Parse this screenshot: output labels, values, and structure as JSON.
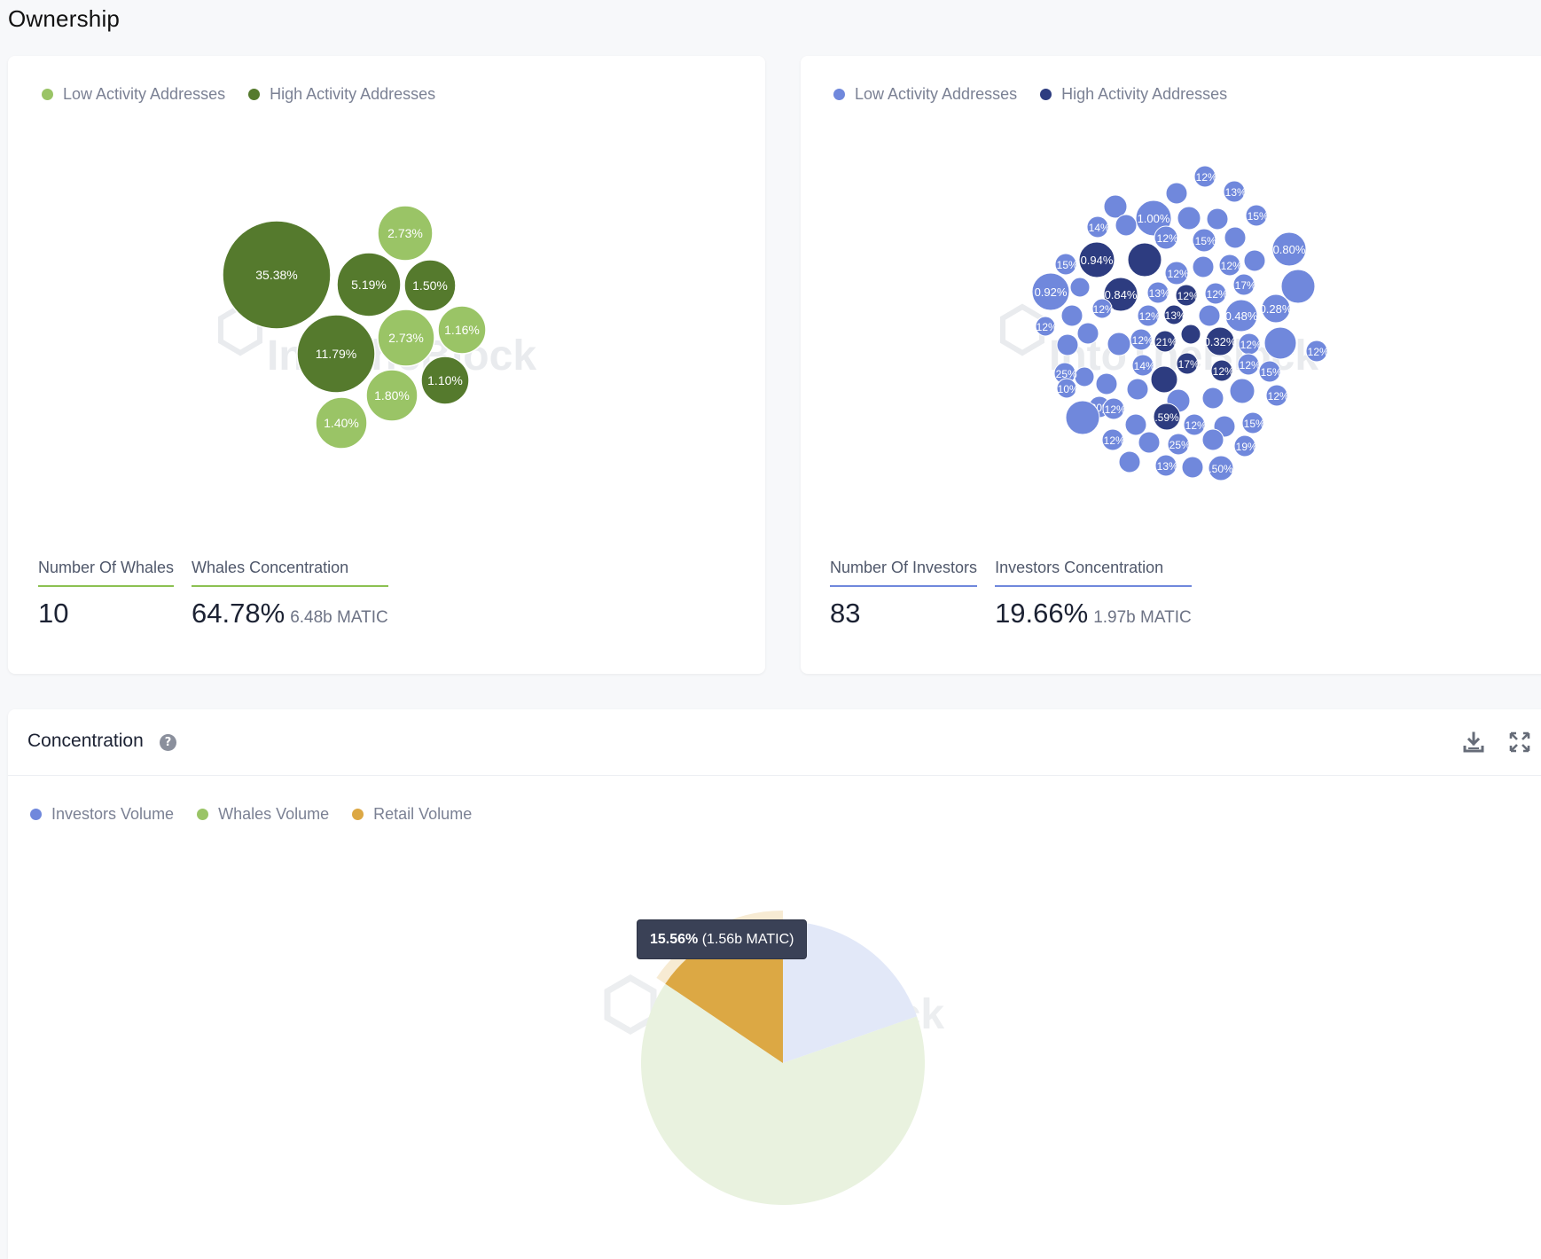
{
  "page": {
    "title": "Ownership"
  },
  "whales_panel": {
    "legend": [
      {
        "label": "Low Activity Addresses",
        "color": "#9ac466"
      },
      {
        "label": "High Activity Addresses",
        "color": "#557a2d"
      }
    ],
    "stats": {
      "count_label": "Number Of Whales",
      "count_value": "10",
      "concentration_label": "Whales Concentration",
      "concentration_value": "64.78%",
      "concentration_sub": "6.48b MATIC"
    },
    "accent_color": "#8cc152"
  },
  "investors_panel": {
    "legend": [
      {
        "label": "Low Activity Addresses",
        "color": "#7088dc"
      },
      {
        "label": "High Activity Addresses",
        "color": "#2d3c80"
      }
    ],
    "stats": {
      "count_label": "Number Of Investors",
      "count_value": "83",
      "concentration_label": "Investors Concentration",
      "concentration_value": "19.66%",
      "concentration_sub": "1.97b MATIC"
    },
    "accent_color": "#7088dc"
  },
  "concentration_panel": {
    "title": "Concentration",
    "help_icon": "question-circle-icon",
    "download_icon": "download-icon",
    "expand_icon": "expand-icon",
    "legend": [
      {
        "label": "Investors Volume",
        "color": "#7088dc"
      },
      {
        "label": "Whales Volume",
        "color": "#9ac466"
      },
      {
        "label": "Retail Volume",
        "color": "#dca844"
      }
    ],
    "tooltip": {
      "value": "15.56%",
      "detail": "(1.56b MATIC)"
    }
  },
  "chart_data": [
    {
      "type": "bubble",
      "name": "Whales",
      "series": [
        {
          "name": "Low Activity Addresses",
          "values": [
            2.73,
            2.73,
            1.16,
            1.8,
            1.4
          ]
        },
        {
          "name": "High Activity Addresses",
          "values": [
            35.38,
            5.19,
            1.5,
            11.79,
            1.1
          ]
        }
      ],
      "labels": [
        "35.38%",
        "2.73%",
        "5.19%",
        "1.50%",
        "11.79%",
        "2.73%",
        "1.16%",
        "1.10%",
        "1.80%",
        "1.40%"
      ],
      "legend": "top-left"
    },
    {
      "type": "bubble",
      "name": "Investors",
      "series": [
        {
          "name": "Low Activity Addresses",
          "values": [
            1.0,
            0.92,
            0.8,
            0.5,
            0.48,
            0.3,
            0.28,
            0.25,
            0.25,
            0.19,
            0.17,
            0.15,
            0.15,
            0.15,
            0.15,
            0.15,
            0.15,
            0.14,
            0.14,
            0.13,
            0.13,
            0.13,
            0.13,
            0.12,
            0.12,
            0.12,
            0.12,
            0.12,
            0.12,
            0.12,
            0.12,
            0.12,
            0.12,
            0.12,
            0.12,
            0.12,
            0.12,
            0.12,
            0.12,
            0.1
          ]
        },
        {
          "name": "High Activity Addresses",
          "values": [
            0.94,
            0.84,
            0.59,
            0.32,
            0.21,
            0.17,
            0.13,
            0.12,
            0.12,
            0.12
          ]
        }
      ],
      "legend": "top-left"
    },
    {
      "type": "pie",
      "name": "Concentration",
      "slices": [
        {
          "name": "Investors Volume",
          "value": 19.66
        },
        {
          "name": "Whales Volume",
          "value": 64.78
        },
        {
          "name": "Retail Volume",
          "value": 15.56
        }
      ],
      "highlighted": "Retail Volume",
      "legend": "top-left"
    }
  ]
}
